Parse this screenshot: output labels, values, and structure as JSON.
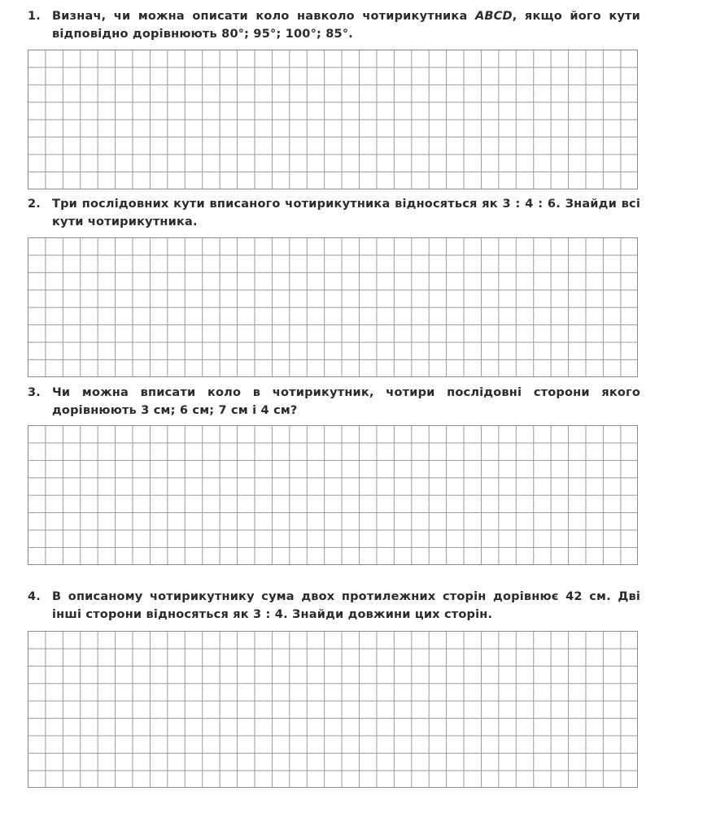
{
  "questions": [
    {
      "number": "1.",
      "text": "Визнач, чи можна описати коло навколо чотирикутника ABCD, якщо його кути відповідно дорівнюють 80°; 95°; 100°; 85°.",
      "grid_rows": 8,
      "grid_cols": 35
    },
    {
      "number": "2.",
      "text": "Три послідовних кути вписаного чотирикутника відносяться як 3 : 4 : 6. Знайди всі кути чотирикутника.",
      "grid_rows": 8,
      "grid_cols": 35
    },
    {
      "number": "3.",
      "text": "Чи можна вписати коло в чотирикутник, чотири послідовні сторони якого дорівнюють 3 см; 6 см; 7 см і 4 см?",
      "grid_rows": 8,
      "grid_cols": 35
    },
    {
      "number": "4.",
      "text": "В описаному чотирикутнику сума двох протилежних сторін дорівнює 42 см. Дві інші сторони відносяться як 3 : 4. Знайди довжини цих сторін.",
      "grid_rows": 9,
      "grid_cols": 35
    }
  ]
}
